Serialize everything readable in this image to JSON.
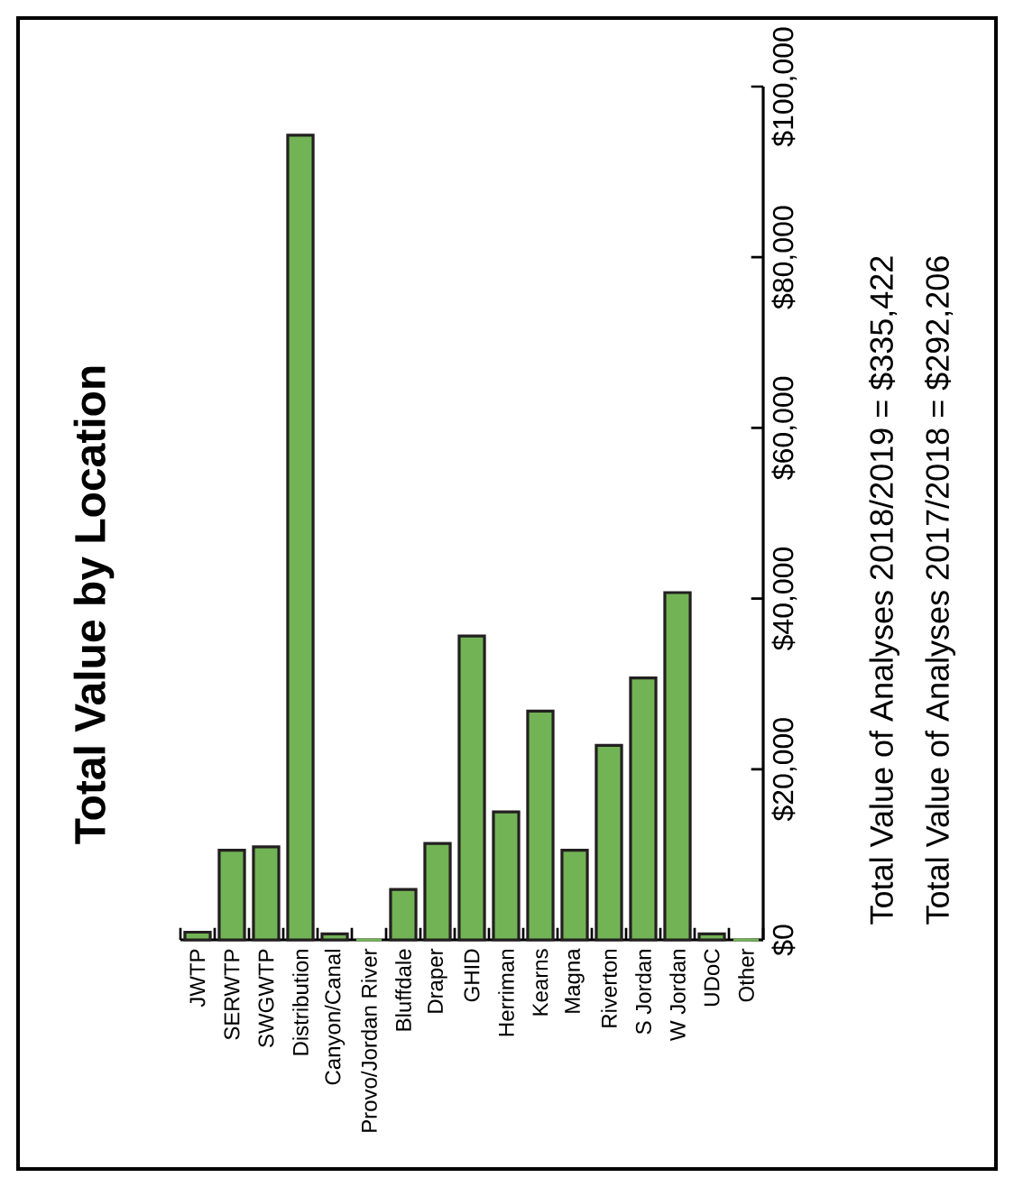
{
  "chart_data": {
    "type": "bar",
    "title": "Total Value by Location",
    "categories": [
      "JWTP",
      "SERWTP",
      "SWGWTP",
      "Distribution",
      "Canyon/Canal",
      "Provo/Jordan River",
      "Bluffdale",
      "Draper",
      "GHID",
      "Herriman",
      "Kearns",
      "Magna",
      "Riverton",
      "S Jordan",
      "W Jordan",
      "UDoC",
      "Other"
    ],
    "values": [
      900,
      10500,
      10900,
      94300,
      700,
      0,
      5900,
      11300,
      35600,
      15000,
      26800,
      10500,
      22800,
      30700,
      40700,
      700,
      0
    ],
    "color": "#72b356",
    "ylim": [
      0,
      100000
    ],
    "yticks": [
      {
        "value": 0,
        "label": "$0"
      },
      {
        "value": 20000,
        "label": "$20,000"
      },
      {
        "value": 40000,
        "label": "$40,000"
      },
      {
        "value": 60000,
        "label": "$60,000"
      },
      {
        "value": 80000,
        "label": "$80,000"
      },
      {
        "value": 100000,
        "label": "$100,000"
      }
    ],
    "annotations": [
      "Total Value of Analyses 2018/2019 = $335,422",
      "Total Value of Analyses 2017/2018 = $292,206"
    ]
  }
}
